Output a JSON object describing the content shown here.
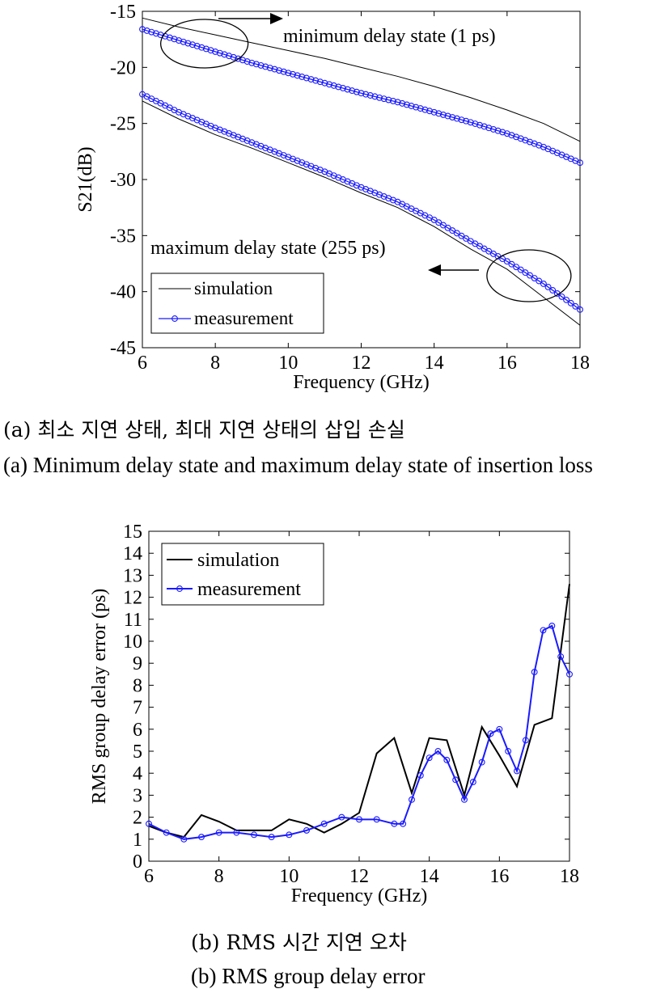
{
  "chart_data": [
    {
      "type": "line",
      "xlabel": "Frequency (GHz)",
      "ylabel": "S21(dB)",
      "xlim": [
        6,
        18
      ],
      "ylim": [
        -45,
        -15
      ],
      "xticks": [
        "6",
        "8",
        "10",
        "12",
        "14",
        "16",
        "18"
      ],
      "yticks": [
        "-15",
        "-20",
        "-25",
        "-30",
        "-35",
        "-40",
        "-45"
      ],
      "grid": false,
      "legend": {
        "position": "bottom-left",
        "entries": [
          "simulation",
          "measurement"
        ]
      },
      "annotations": [
        "minimum delay state (1 ps)",
        "maximum delay state (255 ps)"
      ],
      "series": [
        {
          "name": "simulation",
          "state": "minimum delay state (1 ps)",
          "color": "#000000",
          "x": [
            6,
            7,
            8,
            9,
            10,
            11,
            12,
            13,
            14,
            15,
            16,
            17,
            18
          ],
          "y": [
            -15.6,
            -16.4,
            -17.1,
            -17.8,
            -18.5,
            -19.2,
            -20.0,
            -20.8,
            -21.7,
            -22.7,
            -23.8,
            -25.0,
            -26.6
          ]
        },
        {
          "name": "measurement",
          "state": "minimum delay state (1 ps)",
          "color": "#1a1aff",
          "x": [
            6,
            7,
            8,
            9,
            10,
            11,
            12,
            13,
            14,
            15,
            16,
            17,
            18
          ],
          "y": [
            -16.6,
            -17.6,
            -18.6,
            -19.6,
            -20.5,
            -21.4,
            -22.3,
            -23.1,
            -24.0,
            -24.9,
            -25.9,
            -27.1,
            -28.5
          ]
        },
        {
          "name": "simulation",
          "state": "maximum delay state (255 ps)",
          "color": "#000000",
          "x": [
            6,
            7,
            8,
            9,
            10,
            11,
            12,
            13,
            14,
            15,
            16,
            17,
            18
          ],
          "y": [
            -23.0,
            -24.6,
            -26.0,
            -27.2,
            -28.5,
            -29.8,
            -31.2,
            -32.5,
            -34.2,
            -36.2,
            -38.0,
            -40.5,
            -43.0
          ]
        },
        {
          "name": "measurement",
          "state": "maximum delay state (255 ps)",
          "color": "#1a1aff",
          "x": [
            6,
            7,
            8,
            9,
            10,
            11,
            12,
            13,
            14,
            15,
            16,
            17,
            18
          ],
          "y": [
            -22.4,
            -24.0,
            -25.4,
            -26.7,
            -28.0,
            -29.3,
            -30.7,
            -32.0,
            -33.6,
            -35.5,
            -37.3,
            -39.3,
            -41.6
          ]
        }
      ]
    },
    {
      "type": "line",
      "xlabel": "Frequency (GHz)",
      "ylabel": "RMS group delay error (ps)",
      "xlim": [
        6,
        18
      ],
      "ylim": [
        0,
        15
      ],
      "xticks": [
        "6",
        "8",
        "10",
        "12",
        "14",
        "16",
        "18"
      ],
      "yticks": [
        "0",
        "1",
        "2",
        "3",
        "4",
        "5",
        "6",
        "7",
        "8",
        "9",
        "10",
        "11",
        "12",
        "13",
        "14",
        "15"
      ],
      "grid": false,
      "legend": {
        "position": "top-left",
        "entries": [
          "simulation",
          "measurement"
        ]
      },
      "series": [
        {
          "name": "simulation",
          "color": "#000000",
          "x": [
            6,
            6.5,
            7,
            7.5,
            8,
            8.5,
            9,
            9.5,
            10,
            10.5,
            11,
            11.5,
            12,
            12.5,
            13,
            13.5,
            14,
            14.5,
            15,
            15.5,
            16,
            16.5,
            17,
            17.5,
            18
          ],
          "y": [
            1.6,
            1.3,
            1.1,
            2.1,
            1.8,
            1.4,
            1.4,
            1.4,
            1.9,
            1.7,
            1.3,
            1.7,
            2.2,
            4.9,
            5.6,
            3.1,
            5.6,
            5.5,
            3.0,
            6.1,
            4.8,
            3.4,
            6.2,
            6.5,
            12.6
          ]
        },
        {
          "name": "measurement",
          "color": "#1a1aff",
          "x": [
            6,
            6.5,
            7,
            7.5,
            8,
            8.5,
            9,
            9.5,
            10,
            10.5,
            11,
            11.5,
            12,
            12.5,
            13,
            13.25,
            13.5,
            13.75,
            14,
            14.25,
            14.5,
            14.75,
            15,
            15.25,
            15.5,
            15.75,
            16,
            16.25,
            16.5,
            16.75,
            17,
            17.25,
            17.5,
            17.75,
            18
          ],
          "y": [
            1.7,
            1.3,
            1.0,
            1.1,
            1.3,
            1.3,
            1.2,
            1.1,
            1.2,
            1.4,
            1.7,
            2.0,
            1.9,
            1.9,
            1.7,
            1.7,
            2.8,
            3.9,
            4.7,
            5.0,
            4.6,
            3.7,
            2.8,
            3.6,
            4.5,
            5.8,
            6.0,
            5.0,
            4.1,
            5.5,
            8.6,
            10.5,
            10.7,
            9.3,
            8.5
          ]
        }
      ]
    }
  ],
  "captions": {
    "a_ko": "(a) 최소 지연 상태, 최대 지연 상태의 삽입 손실",
    "a_en": "(a) Minimum delay state and maximum delay state of insertion loss",
    "b_ko": "(b) RMS 시간 지연 오차",
    "b_en": "(b) RMS group delay error"
  }
}
